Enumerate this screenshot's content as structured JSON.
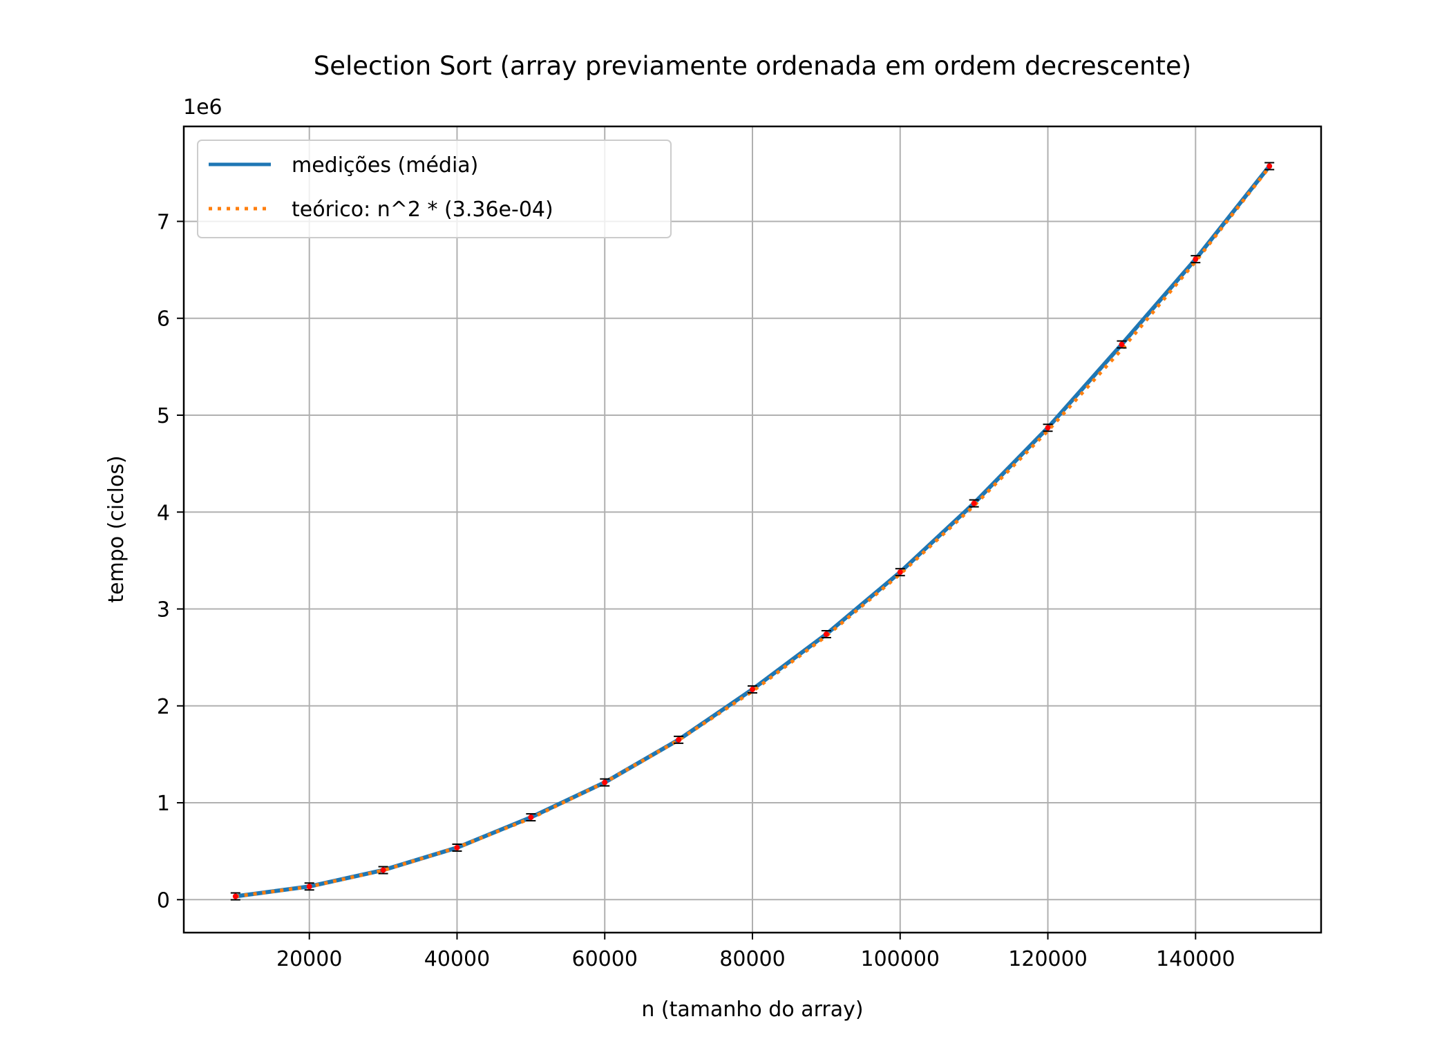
{
  "chart_data": {
    "type": "line",
    "title": "Selection Sort (array previamente ordenada em ordem decrescente)",
    "xlabel": "n (tamanho do array)",
    "ylabel": "tempo (ciclos)",
    "y_offset_label": "1e6",
    "xlim": [
      3000,
      157000
    ],
    "ylim": [
      -0.34,
      7.98
    ],
    "x_ticks": [
      20000,
      40000,
      60000,
      80000,
      100000,
      120000,
      140000
    ],
    "x_tick_labels": [
      "20000",
      "40000",
      "60000",
      "80000",
      "100000",
      "120000",
      "140000"
    ],
    "y_ticks": [
      0,
      1,
      2,
      3,
      4,
      5,
      6,
      7
    ],
    "y_tick_labels": [
      "0",
      "1",
      "2",
      "3",
      "4",
      "5",
      "6",
      "7"
    ],
    "grid": true,
    "legend_position": "top-left",
    "x": [
      10000,
      20000,
      30000,
      40000,
      50000,
      60000,
      70000,
      80000,
      90000,
      100000,
      110000,
      120000,
      130000,
      140000,
      150000
    ],
    "series": [
      {
        "name": "medições (média)",
        "style": "solid",
        "color": "#1f77b4",
        "values": [
          0.034,
          0.136,
          0.305,
          0.537,
          0.85,
          1.21,
          1.65,
          2.17,
          2.74,
          3.38,
          4.09,
          4.87,
          5.73,
          6.61,
          7.57
        ]
      },
      {
        "name": "teórico: n^2 * (3.36e-04)",
        "style": "dotted",
        "color": "#ff7f0e",
        "values": [
          0.0336,
          0.1344,
          0.3024,
          0.5376,
          0.84,
          1.2096,
          1.6464,
          2.1504,
          2.7216,
          3.36,
          4.0656,
          4.8384,
          5.6784,
          6.5856,
          7.56
        ]
      }
    ],
    "measurement_marker_color": "#ff0000",
    "errorbar_color": "#000000"
  }
}
